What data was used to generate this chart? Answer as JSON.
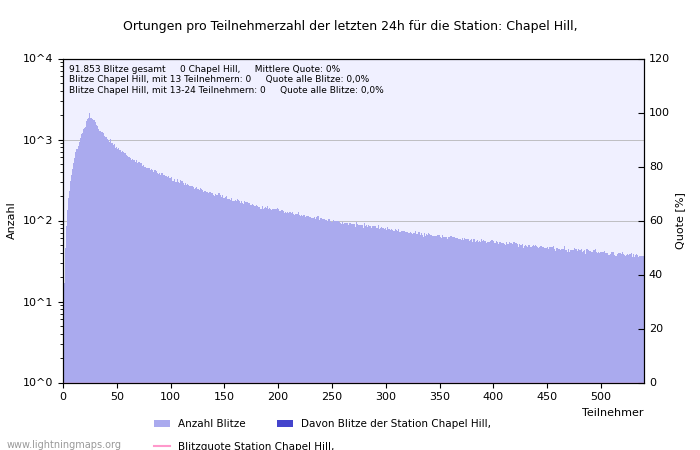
{
  "title": "Ortungen pro Teilnehmerzahl der letzten 24h für die Station: Chapel Hill,",
  "xlabel": "Teilnehmer",
  "ylabel_left": "Anzahl",
  "ylabel_right": "Quote [%]",
  "annotation_lines": [
    "91.853 Blitze gesamt     0 Chapel Hill,     Mittlere Quote: 0%",
    "Blitze Chapel Hill, mit 13 Teilnehmern: 0     Quote alle Blitze: 0,0%",
    "Blitze Chapel Hill, mit 13-24 Teilnehmern: 0     Quote alle Blitze: 0,0%"
  ],
  "legend_labels": [
    "Anzahl Blitze",
    "Davon Blitze der Station Chapel Hill,",
    "Blitzquote Station Chapel Hill,"
  ],
  "bar_color_main": "#aaaaee",
  "bar_color_station": "#4444cc",
  "line_color_quote": "#ff99cc",
  "watermark": "www.lightningmaps.org",
  "xlim": [
    0,
    540
  ],
  "ylim_log": [
    1,
    10000
  ],
  "ylim_right": [
    0,
    120
  ],
  "yticks_right": [
    0,
    20,
    40,
    60,
    80,
    100,
    120
  ],
  "ytick_labels_left": [
    "10^0",
    "10^1",
    "10^2",
    "10^3",
    "10^4"
  ],
  "ytick_vals_left": [
    1,
    10,
    100,
    1000,
    10000
  ],
  "xticks": [
    0,
    50,
    100,
    150,
    200,
    250,
    300,
    350,
    400,
    450,
    500
  ],
  "n_participants": 540,
  "background_color": "#ffffff",
  "plot_bg_color": "#f0f0ff"
}
